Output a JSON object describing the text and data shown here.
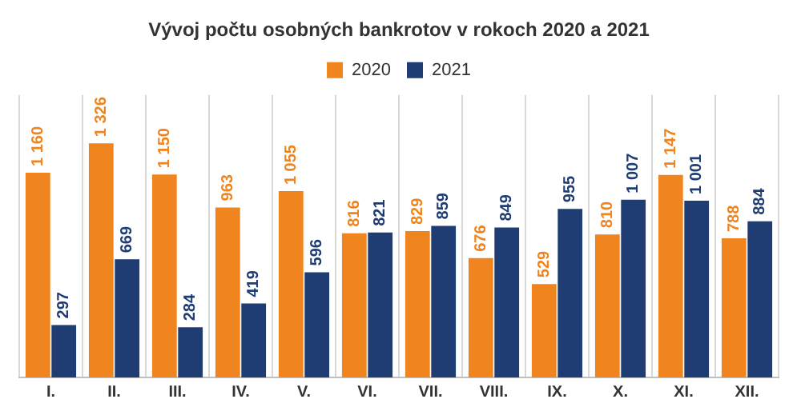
{
  "chart_data": {
    "type": "bar",
    "title": "Vývoj počtu osobných bankrotov v rokoch 2020 a 2021",
    "categories": [
      "I.",
      "II.",
      "III.",
      "IV.",
      "V.",
      "VI.",
      "VII.",
      "VIII.",
      "IX.",
      "X.",
      "XI.",
      "XII."
    ],
    "series": [
      {
        "name": "2020",
        "color": "#f0841e",
        "values": [
          1160,
          1326,
          1150,
          963,
          1055,
          816,
          829,
          676,
          529,
          810,
          1147,
          788
        ],
        "value_labels": [
          "1 160",
          "1 326",
          "1 150",
          "963",
          "1 055",
          "816",
          "829",
          "676",
          "529",
          "810",
          "1 147",
          "788"
        ]
      },
      {
        "name": "2021",
        "color": "#1f3d73",
        "values": [
          297,
          669,
          284,
          419,
          596,
          821,
          859,
          849,
          955,
          1007,
          1001,
          884
        ],
        "value_labels": [
          "297",
          "669",
          "284",
          "419",
          "596",
          "821",
          "859",
          "849",
          "955",
          "1 007",
          "1 001",
          "884"
        ]
      }
    ],
    "legend": "top",
    "grid": "x",
    "tick_labels": "x"
  }
}
